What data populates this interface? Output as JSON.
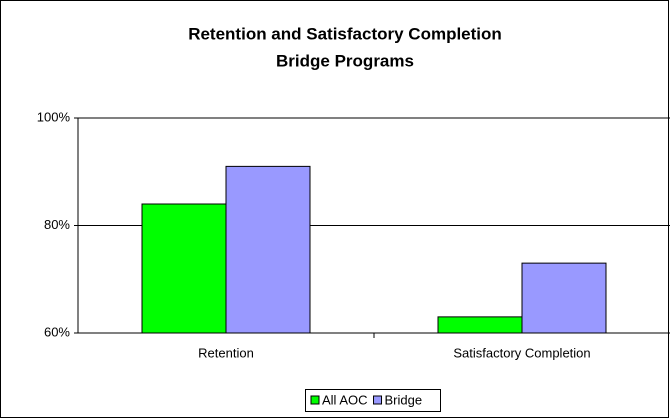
{
  "chart_data": {
    "type": "bar",
    "title": [
      "Retention and Satisfactory Completion",
      "Bridge Programs"
    ],
    "categories": [
      "Retention",
      "Satisfactory Completion"
    ],
    "series": [
      {
        "name": "All AOC",
        "color": "#00ff00",
        "values": [
          84,
          63
        ]
      },
      {
        "name": "Bridge",
        "color": "#9999ff",
        "values": [
          91,
          73
        ]
      }
    ],
    "ylim": [
      60,
      100
    ],
    "yticks": [
      {
        "value": 60,
        "label": "60%"
      },
      {
        "value": 80,
        "label": "80%"
      },
      {
        "value": 100,
        "label": "100%"
      }
    ],
    "grid": true,
    "legend": "bottom"
  }
}
